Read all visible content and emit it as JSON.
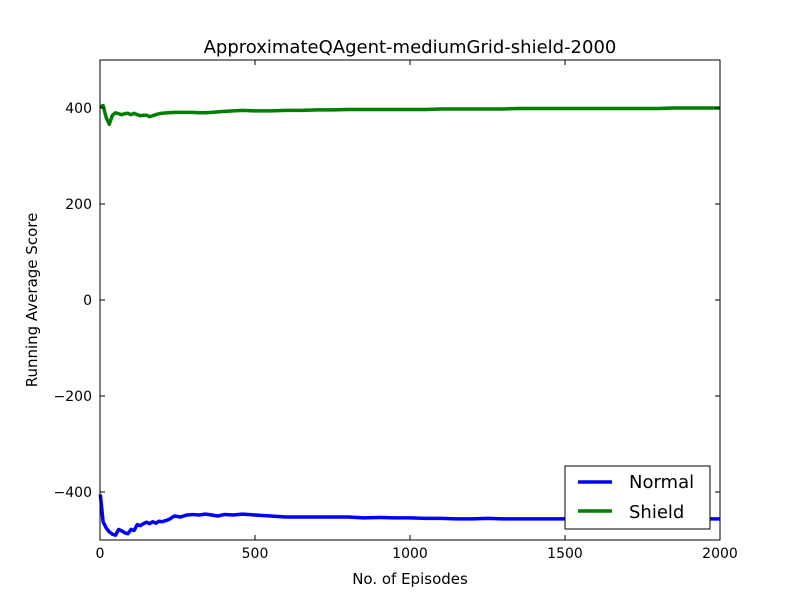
{
  "chart_data": {
    "type": "line",
    "title": "ApproximateQAgent-mediumGrid-shield-2000",
    "xlabel": "No. of Episodes",
    "ylabel": "Running Average Score",
    "xlim": [
      0,
      2000
    ],
    "ylim": [
      -500,
      500
    ],
    "xticks": [
      0,
      500,
      1000,
      1500,
      2000
    ],
    "xtick_labels": [
      "0",
      "500",
      "1000",
      "1500",
      "2000"
    ],
    "yticks": [
      -400,
      -200,
      0,
      200,
      400
    ],
    "ytick_labels": [
      "−400",
      "−200",
      "0",
      "200",
      "400"
    ],
    "grid": false,
    "legend": {
      "position": "lower-right",
      "entries": [
        "Normal",
        "Shield"
      ]
    },
    "series": [
      {
        "name": "Normal",
        "color": "#0000ff",
        "x": [
          1,
          10,
          20,
          30,
          40,
          50,
          60,
          70,
          80,
          90,
          100,
          110,
          120,
          130,
          140,
          150,
          160,
          170,
          180,
          190,
          200,
          220,
          240,
          260,
          280,
          300,
          320,
          340,
          360,
          380,
          400,
          430,
          460,
          500,
          550,
          600,
          650,
          700,
          750,
          800,
          850,
          900,
          950,
          1000,
          1050,
          1100,
          1150,
          1200,
          1250,
          1300,
          1350,
          1400,
          1450,
          1500,
          1550,
          1600,
          1650,
          1700,
          1750,
          1800,
          1850,
          1900,
          1950,
          2000
        ],
        "y": [
          -405,
          -462,
          -475,
          -483,
          -488,
          -490,
          -478,
          -481,
          -485,
          -487,
          -478,
          -480,
          -468,
          -470,
          -466,
          -463,
          -466,
          -462,
          -465,
          -461,
          -462,
          -458,
          -450,
          -452,
          -448,
          -447,
          -448,
          -446,
          -448,
          -450,
          -447,
          -448,
          -446,
          -448,
          -450,
          -452,
          -452,
          -452,
          -452,
          -452,
          -454,
          -453,
          -454,
          -454,
          -455,
          -455,
          -456,
          -456,
          -455,
          -456,
          -456,
          -456,
          -456,
          -456,
          -456,
          -456,
          -456,
          -456,
          -456,
          -456,
          -456,
          -456,
          -456,
          -456
        ]
      },
      {
        "name": "Shield",
        "color": "#007f00",
        "x": [
          1,
          10,
          20,
          30,
          40,
          50,
          60,
          70,
          80,
          90,
          100,
          110,
          120,
          130,
          140,
          150,
          160,
          170,
          180,
          190,
          200,
          220,
          240,
          260,
          280,
          300,
          320,
          340,
          360,
          380,
          400,
          430,
          460,
          500,
          550,
          600,
          650,
          700,
          750,
          800,
          850,
          900,
          950,
          1000,
          1050,
          1100,
          1150,
          1200,
          1250,
          1300,
          1350,
          1400,
          1450,
          1500,
          1550,
          1600,
          1650,
          1700,
          1750,
          1800,
          1850,
          1900,
          1950,
          2000
        ],
        "y": [
          402,
          405,
          380,
          366,
          385,
          390,
          388,
          386,
          388,
          389,
          386,
          389,
          386,
          384,
          385,
          385,
          382,
          384,
          386,
          388,
          389,
          390,
          391,
          391,
          391,
          391,
          390,
          390,
          391,
          392,
          393,
          394,
          395,
          394,
          394,
          395,
          395,
          396,
          396,
          397,
          397,
          397,
          397,
          397,
          397,
          398,
          398,
          398,
          398,
          398,
          399,
          399,
          399,
          399,
          399,
          399,
          399,
          399,
          399,
          399,
          400,
          400,
          400,
          400
        ]
      }
    ]
  }
}
